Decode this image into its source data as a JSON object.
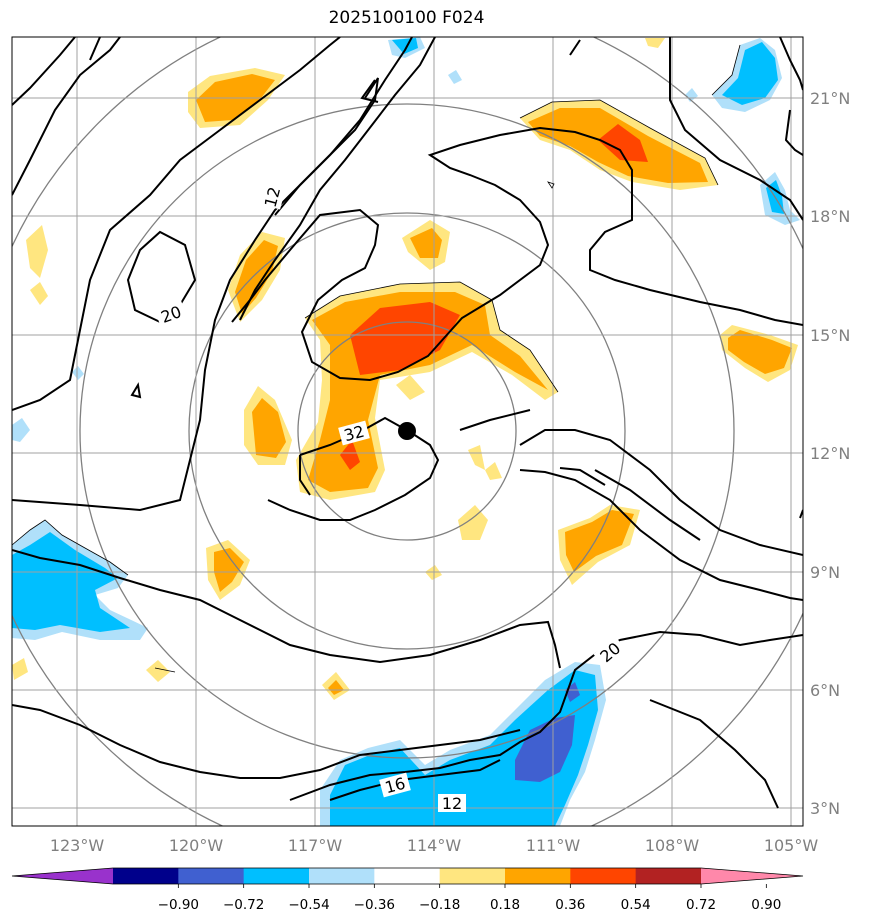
{
  "title": "2025100100 F024",
  "lon_labels": [
    "123°W",
    "120°W",
    "117°W",
    "114°W",
    "111°W",
    "108°W",
    "105°W"
  ],
  "lat_labels": [
    "21°N",
    "18°N",
    "15°N",
    "12°N",
    "9°N",
    "6°N",
    "3°N"
  ],
  "contour_labels": [
    "12",
    "20",
    "32",
    "20",
    "16",
    "12"
  ],
  "colorbar": {
    "colors": [
      "#9932cc",
      "#00008b",
      "#4060d0",
      "#00bfff",
      "#b0e0fa",
      "#ffffff",
      "#ffe680",
      "#ffa500",
      "#ff4500",
      "#b22222",
      "#ff88aa"
    ],
    "labels": [
      "−0.90",
      "−0.72",
      "−0.54",
      "−0.36",
      "−0.18",
      "0.18",
      "0.36",
      "0.54",
      "0.72",
      "0.90"
    ]
  },
  "center_marker": "storm-center"
}
